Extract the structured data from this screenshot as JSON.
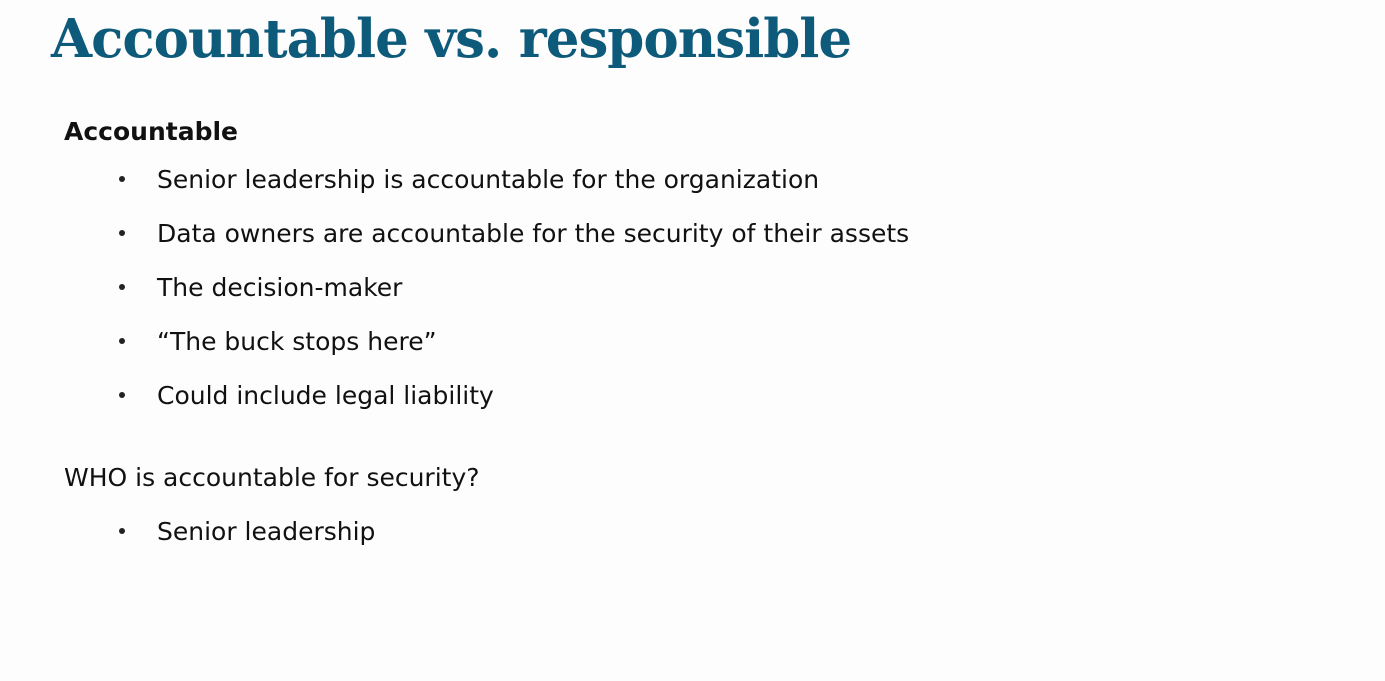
{
  "colors": {
    "title": "#0e5a7a",
    "text": "#111111",
    "background": "#fdfdfd"
  },
  "slide": {
    "title": "Accountable vs. responsible",
    "section_heading": "Accountable",
    "bullets": [
      "Senior leadership is accountable for the organization",
      "Data owners are accountable for the security of their assets",
      "The decision-maker",
      "“The buck stops here”",
      "Could include legal liability"
    ],
    "question": "WHO is accountable for security?",
    "answer_bullets": [
      "Senior leadership"
    ]
  }
}
